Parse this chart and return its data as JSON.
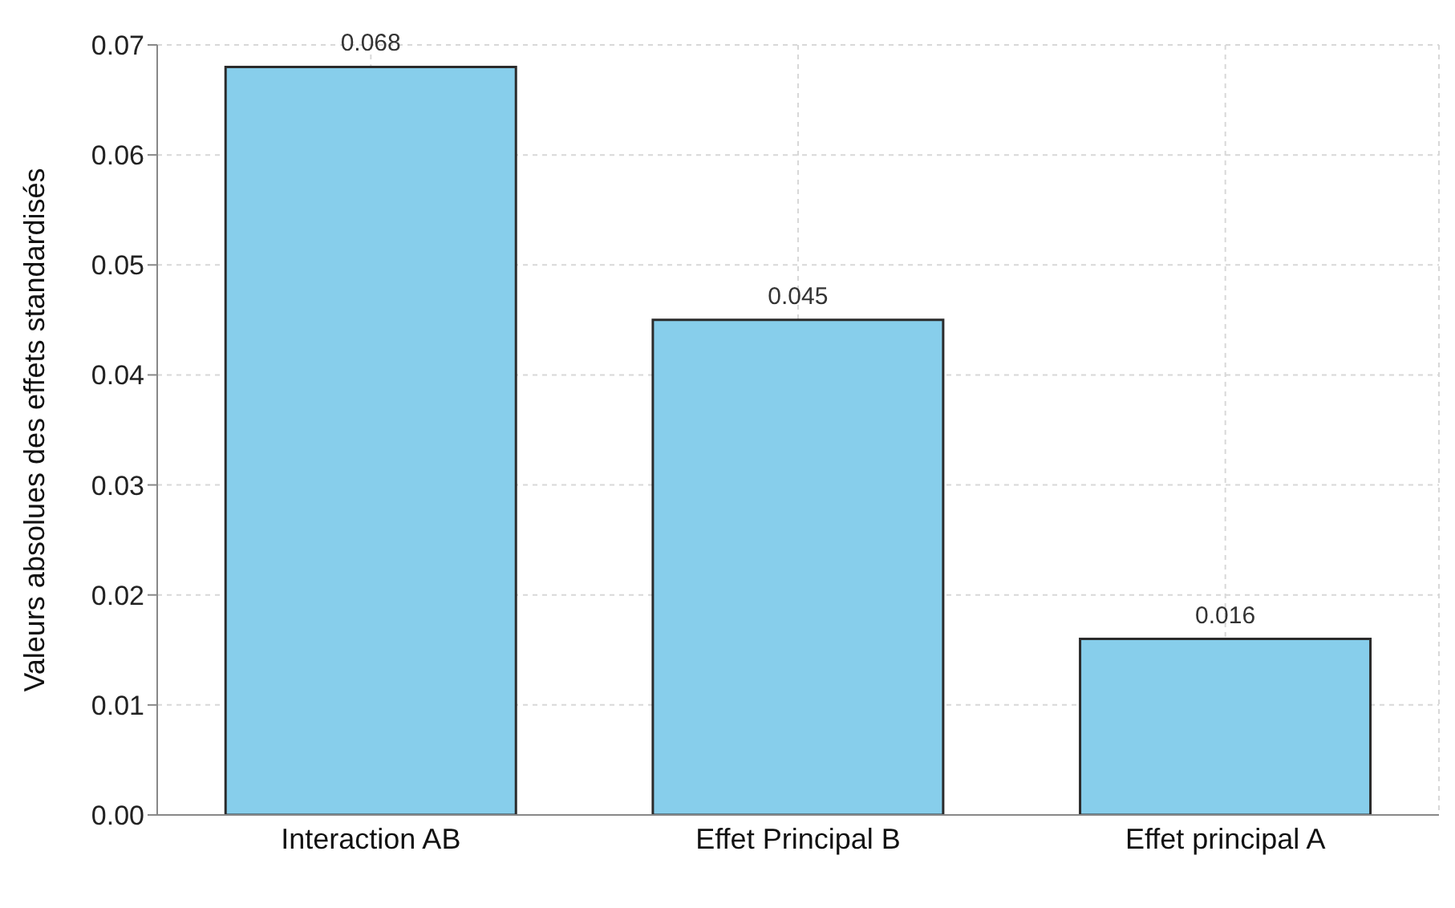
{
  "chart_data": {
    "type": "bar",
    "ylabel": "Valeurs absolues des effets standardisés",
    "categories": [
      "Interaction AB",
      "Effet Principal B",
      "Effet principal A"
    ],
    "values": [
      0.068,
      0.045,
      0.016
    ],
    "color": "#87ceeb",
    "ylim": [
      0,
      0.07
    ],
    "yticks": [
      {
        "value": 0,
        "label": "0.00"
      },
      0.01,
      0.02,
      0.03,
      0.04,
      0.05,
      0.06,
      0.07
    ],
    "grid": true,
    "data_labels": true
  }
}
